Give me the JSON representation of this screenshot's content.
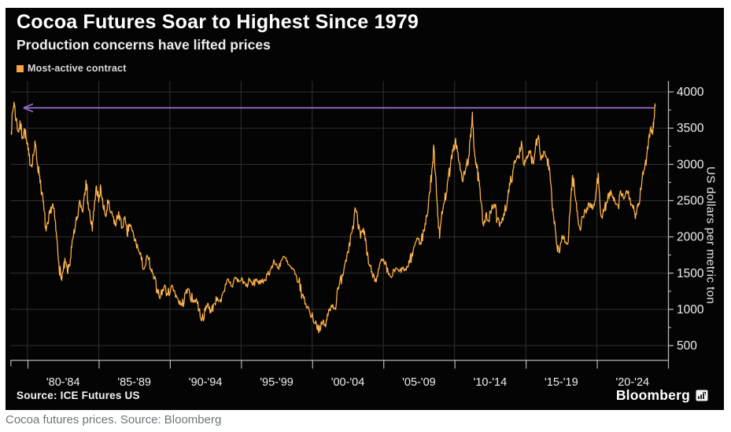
{
  "header": {
    "title": "Cocoa Futures Soar to Highest Since 1979",
    "subtitle": "Production concerns have lifted prices"
  },
  "legend": {
    "label": "Most-active contract",
    "swatch_color": "#f9a43e"
  },
  "footer": {
    "source": "Source: ICE Futures US",
    "brand": "Bloomberg"
  },
  "page": {
    "caption": "Cocoa futures prices. Source: Bloomberg"
  },
  "chart_data": {
    "type": "line",
    "title": "Cocoa Futures Soar to Highest Since 1979",
    "subtitle": "Production concerns have lifted prices",
    "ylabel": "US dollars per metric ton",
    "ylim": [
      303,
      4150
    ],
    "yticks": [
      500,
      1000,
      1500,
      2000,
      2500,
      3000,
      3500,
      4000
    ],
    "ytick_minor": [
      750,
      1250,
      1750,
      2250,
      2750,
      3250,
      3750
    ],
    "xlim_years": [
      1978.8,
      2025
    ],
    "x_boundaries": [
      1980,
      1985,
      1990,
      1995,
      2000,
      2005,
      2010,
      2015,
      2020,
      2025
    ],
    "xtick_labels": [
      "'80-'84",
      "'85-'89",
      "'90-'94",
      "'95-'99",
      "'00-'04",
      "'05-'09",
      "'10-'14",
      "'15-'19",
      "'20-'24"
    ],
    "grid": "both",
    "colors": {
      "line": "#f6a02c",
      "line_highlight": "#ffd08a",
      "grid": "#313131",
      "axis": "#b5b5b5",
      "tick_text": "#f0f0f0",
      "arrow": "#9168c2"
    },
    "annotation": {
      "type": "arrow-left",
      "value": 3780,
      "from_year": 2024.05,
      "to_year": 1979.72
    },
    "series": [
      {
        "name": "Most-active contract",
        "points": [
          [
            1978.85,
            3450
          ],
          [
            1978.95,
            3720
          ],
          [
            1979.05,
            3860
          ],
          [
            1979.2,
            3620
          ],
          [
            1979.35,
            3450
          ],
          [
            1979.5,
            3560
          ],
          [
            1979.65,
            3380
          ],
          [
            1979.8,
            3480
          ],
          [
            1979.95,
            3280
          ],
          [
            1980.1,
            3120
          ],
          [
            1980.25,
            2980
          ],
          [
            1980.4,
            3120
          ],
          [
            1980.55,
            3280
          ],
          [
            1980.7,
            2990
          ],
          [
            1980.85,
            2850
          ],
          [
            1981.0,
            2620
          ],
          [
            1981.15,
            2380
          ],
          [
            1981.3,
            2080
          ],
          [
            1981.45,
            2180
          ],
          [
            1981.6,
            2350
          ],
          [
            1981.75,
            2450
          ],
          [
            1981.9,
            2280
          ],
          [
            1982.05,
            1980
          ],
          [
            1982.2,
            1650
          ],
          [
            1982.35,
            1420
          ],
          [
            1982.5,
            1520
          ],
          [
            1982.65,
            1660
          ],
          [
            1982.8,
            1520
          ],
          [
            1982.95,
            1620
          ],
          [
            1983.1,
            1850
          ],
          [
            1983.3,
            2050
          ],
          [
            1983.5,
            2280
          ],
          [
            1983.7,
            2480
          ],
          [
            1983.85,
            2350
          ],
          [
            1984.0,
            2600
          ],
          [
            1984.1,
            2780
          ],
          [
            1984.25,
            2480
          ],
          [
            1984.4,
            2280
          ],
          [
            1984.55,
            2080
          ],
          [
            1984.7,
            2450
          ],
          [
            1984.85,
            2700
          ],
          [
            1985.0,
            2480
          ],
          [
            1985.15,
            2680
          ],
          [
            1985.3,
            2420
          ],
          [
            1985.5,
            2280
          ],
          [
            1985.65,
            2480
          ],
          [
            1985.8,
            2350
          ],
          [
            1986.0,
            2280
          ],
          [
            1986.2,
            2150
          ],
          [
            1986.4,
            2350
          ],
          [
            1986.6,
            2120
          ],
          [
            1986.8,
            2250
          ],
          [
            1987.0,
            2020
          ],
          [
            1987.15,
            2180
          ],
          [
            1987.35,
            2080
          ],
          [
            1987.55,
            1950
          ],
          [
            1987.75,
            1850
          ],
          [
            1988.0,
            1680
          ],
          [
            1988.2,
            1560
          ],
          [
            1988.45,
            1720
          ],
          [
            1988.7,
            1520
          ],
          [
            1988.9,
            1420
          ],
          [
            1989.1,
            1280
          ],
          [
            1989.35,
            1180
          ],
          [
            1989.6,
            1320
          ],
          [
            1989.85,
            1200
          ],
          [
            1990.1,
            1320
          ],
          [
            1990.35,
            1250
          ],
          [
            1990.6,
            1120
          ],
          [
            1990.85,
            1050
          ],
          [
            1991.1,
            1220
          ],
          [
            1991.35,
            1280
          ],
          [
            1991.6,
            1100
          ],
          [
            1991.85,
            1150
          ],
          [
            1992.05,
            1000
          ],
          [
            1992.25,
            860
          ],
          [
            1992.5,
            980
          ],
          [
            1992.7,
            1080
          ],
          [
            1992.9,
            960
          ],
          [
            1993.1,
            1080
          ],
          [
            1993.35,
            1160
          ],
          [
            1993.6,
            1100
          ],
          [
            1993.85,
            1250
          ],
          [
            1994.1,
            1420
          ],
          [
            1994.35,
            1320
          ],
          [
            1994.6,
            1440
          ],
          [
            1994.85,
            1380
          ],
          [
            1995.1,
            1420
          ],
          [
            1995.35,
            1320
          ],
          [
            1995.6,
            1400
          ],
          [
            1995.85,
            1340
          ],
          [
            1996.1,
            1420
          ],
          [
            1996.35,
            1350
          ],
          [
            1996.6,
            1400
          ],
          [
            1996.85,
            1480
          ],
          [
            1997.1,
            1560
          ],
          [
            1997.35,
            1650
          ],
          [
            1997.6,
            1580
          ],
          [
            1997.85,
            1680
          ],
          [
            1998.05,
            1720
          ],
          [
            1998.3,
            1620
          ],
          [
            1998.55,
            1560
          ],
          [
            1998.8,
            1480
          ],
          [
            1999.05,
            1380
          ],
          [
            1999.3,
            1200
          ],
          [
            1999.55,
            1080
          ],
          [
            1999.8,
            980
          ],
          [
            2000.05,
            880
          ],
          [
            2000.3,
            800
          ],
          [
            2000.55,
            700
          ],
          [
            2000.75,
            840
          ],
          [
            2000.95,
            760
          ],
          [
            2001.15,
            980
          ],
          [
            2001.35,
            1060
          ],
          [
            2001.6,
            1020
          ],
          [
            2001.85,
            1280
          ],
          [
            2002.1,
            1480
          ],
          [
            2002.35,
            1680
          ],
          [
            2002.6,
            1920
          ],
          [
            2002.85,
            2150
          ],
          [
            2003.05,
            2380
          ],
          [
            2003.2,
            2180
          ],
          [
            2003.4,
            1980
          ],
          [
            2003.6,
            2120
          ],
          [
            2003.8,
            1880
          ],
          [
            2004.0,
            1620
          ],
          [
            2004.2,
            1520
          ],
          [
            2004.45,
            1420
          ],
          [
            2004.7,
            1560
          ],
          [
            2004.9,
            1680
          ],
          [
            2005.1,
            1620
          ],
          [
            2005.35,
            1480
          ],
          [
            2005.6,
            1450
          ],
          [
            2005.85,
            1560
          ],
          [
            2006.1,
            1520
          ],
          [
            2006.35,
            1560
          ],
          [
            2006.6,
            1540
          ],
          [
            2006.85,
            1640
          ],
          [
            2007.1,
            1820
          ],
          [
            2007.35,
            1980
          ],
          [
            2007.6,
            1920
          ],
          [
            2007.85,
            2080
          ],
          [
            2008.05,
            2280
          ],
          [
            2008.25,
            2620
          ],
          [
            2008.45,
            2980
          ],
          [
            2008.55,
            3240
          ],
          [
            2008.7,
            2750
          ],
          [
            2008.85,
            2250
          ],
          [
            2008.95,
            1980
          ],
          [
            2009.1,
            2350
          ],
          [
            2009.3,
            2480
          ],
          [
            2009.5,
            2750
          ],
          [
            2009.7,
            2950
          ],
          [
            2009.9,
            3180
          ],
          [
            2010.05,
            3340
          ],
          [
            2010.2,
            3180
          ],
          [
            2010.4,
            2920
          ],
          [
            2010.6,
            2780
          ],
          [
            2010.8,
            2950
          ],
          [
            2011.0,
            3120
          ],
          [
            2011.15,
            3380
          ],
          [
            2011.25,
            3720
          ],
          [
            2011.4,
            3180
          ],
          [
            2011.55,
            2950
          ],
          [
            2011.7,
            2780
          ],
          [
            2011.85,
            2480
          ],
          [
            2012.0,
            2180
          ],
          [
            2012.2,
            2320
          ],
          [
            2012.4,
            2220
          ],
          [
            2012.6,
            2380
          ],
          [
            2012.8,
            2450
          ],
          [
            2013.0,
            2240
          ],
          [
            2013.2,
            2180
          ],
          [
            2013.45,
            2320
          ],
          [
            2013.7,
            2480
          ],
          [
            2013.9,
            2720
          ],
          [
            2014.1,
            2920
          ],
          [
            2014.3,
            3050
          ],
          [
            2014.5,
            3120
          ],
          [
            2014.7,
            3320
          ],
          [
            2014.9,
            2980
          ],
          [
            2015.1,
            3080
          ],
          [
            2015.3,
            3180
          ],
          [
            2015.5,
            3020
          ],
          [
            2015.7,
            3280
          ],
          [
            2015.9,
            3400
          ],
          [
            2016.1,
            3080
          ],
          [
            2016.3,
            3180
          ],
          [
            2016.5,
            3080
          ],
          [
            2016.7,
            2880
          ],
          [
            2016.85,
            2450
          ],
          [
            2017.0,
            2180
          ],
          [
            2017.2,
            1880
          ],
          [
            2017.35,
            1780
          ],
          [
            2017.55,
            2020
          ],
          [
            2017.75,
            1920
          ],
          [
            2017.95,
            1900
          ],
          [
            2018.15,
            2480
          ],
          [
            2018.3,
            2850
          ],
          [
            2018.5,
            2520
          ],
          [
            2018.65,
            2280
          ],
          [
            2018.8,
            2120
          ],
          [
            2019.0,
            2280
          ],
          [
            2019.2,
            2350
          ],
          [
            2019.45,
            2460
          ],
          [
            2019.7,
            2380
          ],
          [
            2019.9,
            2520
          ],
          [
            2020.1,
            2880
          ],
          [
            2020.3,
            2280
          ],
          [
            2020.5,
            2350
          ],
          [
            2020.7,
            2480
          ],
          [
            2020.9,
            2620
          ],
          [
            2021.1,
            2540
          ],
          [
            2021.3,
            2460
          ],
          [
            2021.5,
            2420
          ],
          [
            2021.7,
            2600
          ],
          [
            2021.9,
            2520
          ],
          [
            2022.1,
            2640
          ],
          [
            2022.3,
            2540
          ],
          [
            2022.5,
            2420
          ],
          [
            2022.7,
            2250
          ],
          [
            2022.9,
            2420
          ],
          [
            2023.1,
            2650
          ],
          [
            2023.3,
            2920
          ],
          [
            2023.5,
            3120
          ],
          [
            2023.65,
            3380
          ],
          [
            2023.8,
            3520
          ],
          [
            2023.9,
            3420
          ],
          [
            2024.0,
            3620
          ],
          [
            2024.1,
            3800
          ]
        ]
      }
    ]
  }
}
